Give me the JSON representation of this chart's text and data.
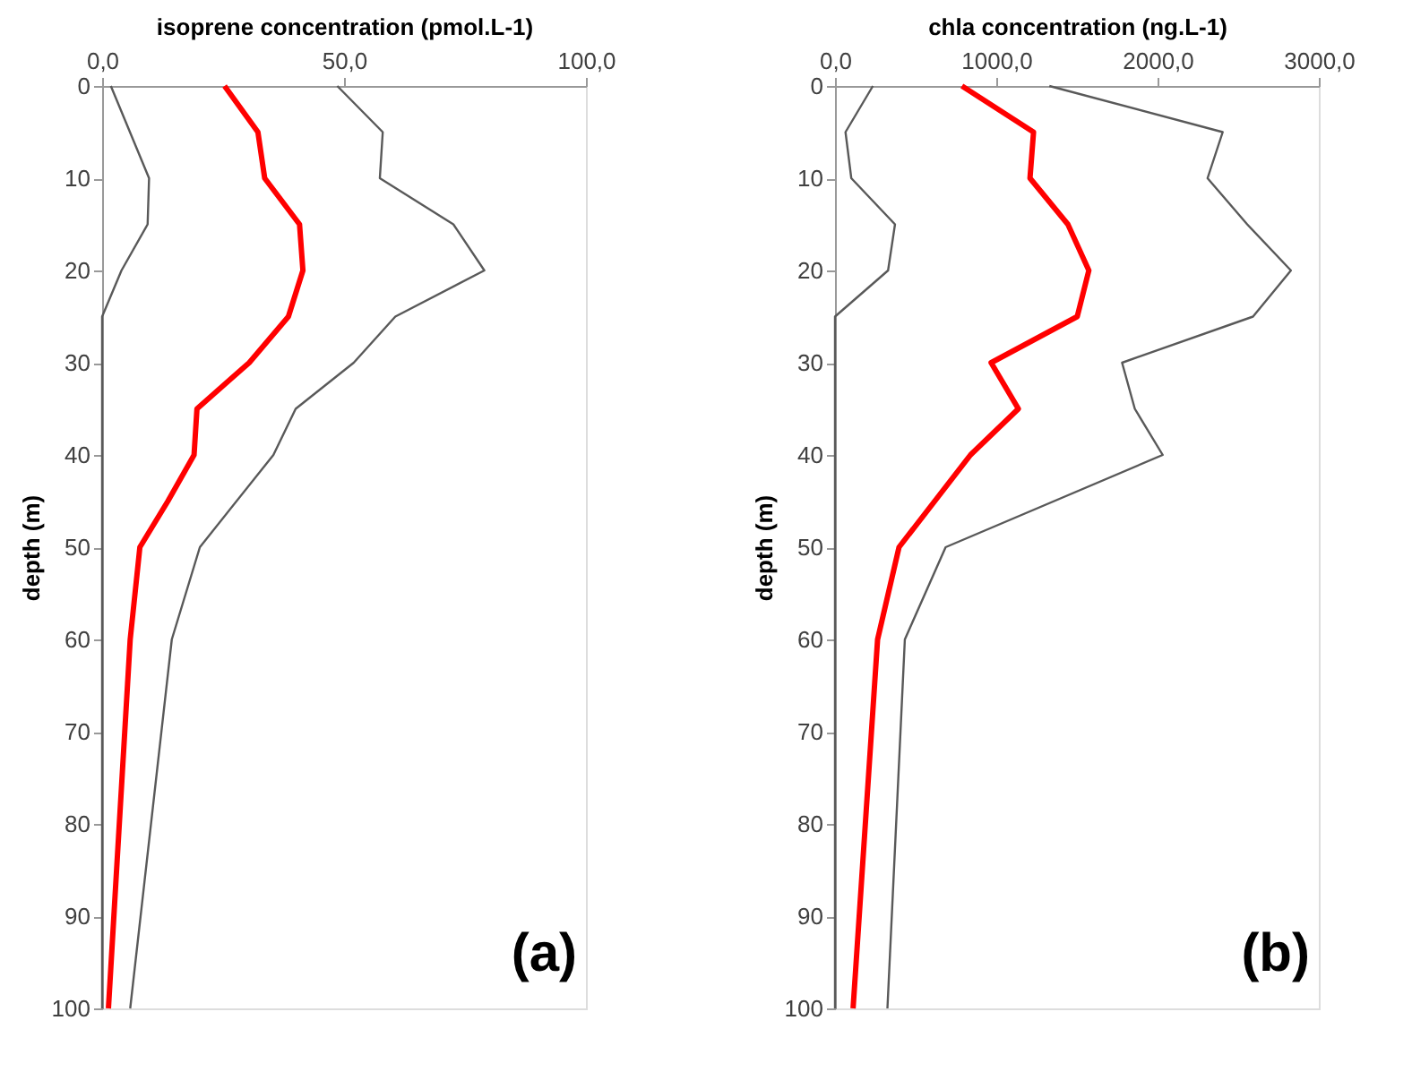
{
  "chart_data": [
    {
      "type": "line",
      "xlabel": "isoprene concentration (pmol.L-1)",
      "ylabel": "depth (m)",
      "annotations": [
        "(a)"
      ],
      "xlim": [
        0,
        100
      ],
      "xticks": [
        {
          "value": 0,
          "label": "0,0"
        },
        {
          "value": 50,
          "label": "50,0"
        },
        {
          "value": 100,
          "label": "100,0"
        }
      ],
      "ylim": [
        100,
        0
      ],
      "yticks": [
        0,
        10,
        20,
        30,
        40,
        50,
        60,
        70,
        80,
        90,
        100
      ],
      "grid": false,
      "marker": "none",
      "line_style": "solid",
      "series": [
        {
          "color": "#595959",
          "x": [
            1.8,
            9.7,
            9.4,
            4.0,
            0,
            0
          ],
          "values": [
            0,
            10,
            15,
            20,
            25,
            100
          ]
        },
        {
          "color": "#595959",
          "x": [
            48.6,
            58.0,
            57.4,
            72.6,
            79.0,
            60.6,
            52.0,
            40.0,
            35.4,
            20.2,
            14.4,
            5.8
          ],
          "values": [
            0,
            5,
            10,
            15,
            20,
            25,
            30,
            35,
            40,
            50,
            60,
            100
          ]
        },
        {
          "color": "#ff0000",
          "x": [
            25.3,
            32.2,
            33.6,
            40.8,
            41.5,
            38.5,
            30.4,
            19.6,
            19.0,
            13.6,
            7.8,
            5.8,
            1.3
          ],
          "values": [
            0,
            5,
            10,
            15,
            20,
            25,
            30,
            35,
            40,
            45,
            50,
            60,
            100
          ]
        }
      ]
    },
    {
      "type": "line",
      "xlabel": "chla concentration (ng.L-1)",
      "ylabel": "depth (m)",
      "annotations": [
        "(b)"
      ],
      "xlim": [
        0,
        3000
      ],
      "xticks": [
        {
          "value": 0,
          "label": "0,0"
        },
        {
          "value": 1000,
          "label": "1000,0"
        },
        {
          "value": 2000,
          "label": "2000,0"
        },
        {
          "value": 3000,
          "label": "3000,0"
        }
      ],
      "ylim": [
        100,
        0
      ],
      "yticks": [
        0,
        10,
        20,
        30,
        40,
        50,
        60,
        70,
        80,
        90,
        100
      ],
      "grid": false,
      "marker": "none",
      "line_style": "solid",
      "series": [
        {
          "color": "#595959",
          "x": [
            235,
            65,
            101,
            372,
            329,
            0,
            0
          ],
          "values": [
            0,
            5,
            10,
            15,
            20,
            25,
            100
          ]
        },
        {
          "color": "#595959",
          "x": [
            1329,
            2404,
            2310,
            2556,
            2827,
            2592,
            1780,
            1859,
            2032,
            686,
            433,
            325
          ],
          "values": [
            0,
            5,
            10,
            15,
            20,
            25,
            30,
            35,
            40,
            50,
            60,
            100
          ]
        },
        {
          "color": "#ff0000",
          "x": [
            787,
            1231,
            1209,
            1444,
            1574,
            1502,
            968,
            1137,
            840,
            397,
            264,
            112
          ],
          "values": [
            0,
            5,
            10,
            15,
            20,
            25,
            30,
            35,
            40,
            50,
            60,
            100
          ]
        }
      ]
    }
  ]
}
